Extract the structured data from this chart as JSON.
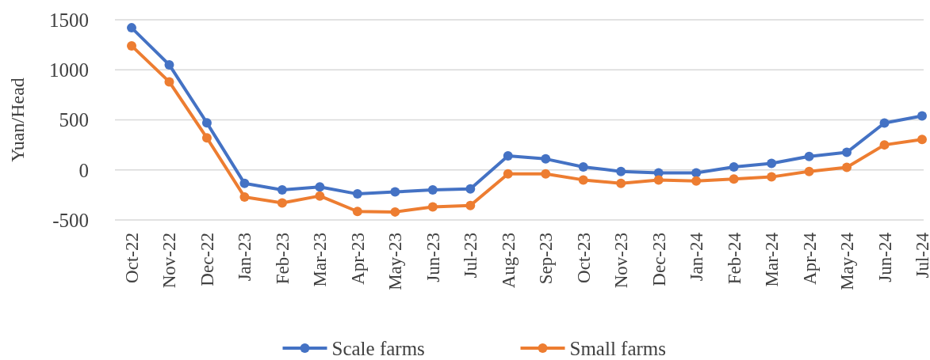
{
  "chart_data": {
    "type": "line",
    "ylabel": "Yuan/Head",
    "categories": [
      "Oct-22",
      "Nov-22",
      "Dec-22",
      "Jan-23",
      "Feb-23",
      "Mar-23",
      "Apr-23",
      "May-23",
      "Jun-23",
      "Jul-23",
      "Aug-23",
      "Sep-23",
      "Oct-23",
      "Nov-23",
      "Dec-23",
      "Jan-24",
      "Feb-24",
      "Mar-24",
      "Apr-24",
      "May-24",
      "Jun-24",
      "Jul-24"
    ],
    "series": [
      {
        "name": "Scale farms",
        "color": "#4472c4",
        "values": [
          1420,
          1050,
          470,
          -135,
          -200,
          -170,
          -240,
          -220,
          -200,
          -190,
          140,
          110,
          30,
          -15,
          -30,
          -30,
          30,
          65,
          135,
          175,
          468,
          540
        ]
      },
      {
        "name": "Small farms",
        "color": "#ed7d31",
        "values": [
          1240,
          880,
          320,
          -270,
          -330,
          -260,
          -415,
          -420,
          -370,
          -355,
          -40,
          -40,
          -100,
          -135,
          -100,
          -110,
          -90,
          -70,
          -15,
          25,
          250,
          305
        ]
      }
    ],
    "ylim": [
      -500,
      1500
    ],
    "yticks": [
      -500,
      0,
      500,
      1000,
      1500
    ],
    "grid": "y",
    "legend": "bottom",
    "marker": "circle",
    "line_style": "solid"
  }
}
